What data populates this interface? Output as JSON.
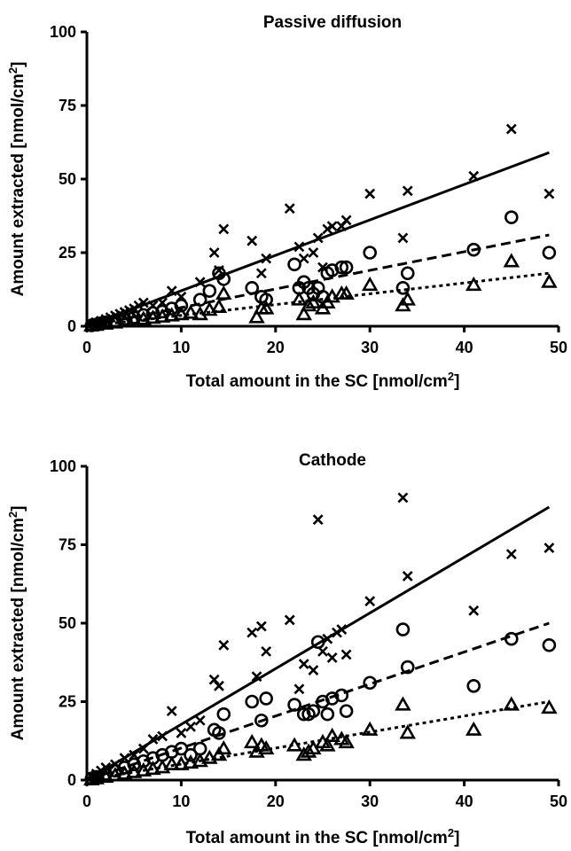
{
  "chart_data": [
    {
      "type": "scatter",
      "title": "Passive diffusion",
      "xlabel": "Total amount in the SC [nmol/cm²]",
      "ylabel": "Amount extracted [nmol/cm²]",
      "xlim": [
        0,
        50
      ],
      "ylim": [
        0,
        100
      ],
      "xticks": [
        "0",
        "10",
        "20",
        "30",
        "40",
        "50"
      ],
      "yticks": [
        "0",
        "25",
        "50",
        "75",
        "100"
      ],
      "series": [
        {
          "marker": "x",
          "fit_style": "solid",
          "fit": [
            [
              0,
              0
            ],
            [
              49,
              59
            ]
          ],
          "points": [
            [
              0.5,
              0.6
            ],
            [
              1,
              1.2
            ],
            [
              1.5,
              1.8
            ],
            [
              2,
              2.4
            ],
            [
              2.5,
              3
            ],
            [
              3,
              3.6
            ],
            [
              3.5,
              4.2
            ],
            [
              4,
              4.8
            ],
            [
              4.5,
              5.4
            ],
            [
              5,
              6
            ],
            [
              5.5,
              7
            ],
            [
              6,
              8
            ],
            [
              7,
              7
            ],
            [
              8,
              8
            ],
            [
              9,
              12
            ],
            [
              10,
              10
            ],
            [
              12,
              15
            ],
            [
              13.5,
              25
            ],
            [
              14,
              19
            ],
            [
              14.5,
              33
            ],
            [
              17.5,
              29
            ],
            [
              18.5,
              18
            ],
            [
              19,
              23
            ],
            [
              21.5,
              40
            ],
            [
              22.5,
              27
            ],
            [
              23,
              23
            ],
            [
              24,
              25
            ],
            [
              24.5,
              30
            ],
            [
              25,
              20
            ],
            [
              25.5,
              33
            ],
            [
              26,
              34
            ],
            [
              27,
              34
            ],
            [
              27.5,
              36
            ],
            [
              30,
              45
            ],
            [
              33.5,
              30
            ],
            [
              34,
              46
            ],
            [
              41,
              51
            ],
            [
              45,
              67
            ],
            [
              49,
              45
            ]
          ]
        },
        {
          "marker": "o",
          "fit_style": "dashed",
          "fit": [
            [
              0,
              0
            ],
            [
              49,
              31
            ]
          ],
          "points": [
            [
              0.5,
              0.3
            ],
            [
              1,
              0.6
            ],
            [
              1.5,
              1
            ],
            [
              2,
              1.3
            ],
            [
              3,
              1.8
            ],
            [
              4,
              2.5
            ],
            [
              5,
              3
            ],
            [
              6,
              3.8
            ],
            [
              7,
              4.5
            ],
            [
              8,
              5
            ],
            [
              9,
              6
            ],
            [
              10,
              7
            ],
            [
              12,
              9
            ],
            [
              13,
              12
            ],
            [
              14,
              18
            ],
            [
              14.5,
              16
            ],
            [
              17.5,
              13
            ],
            [
              18.5,
              10
            ],
            [
              19,
              9
            ],
            [
              22,
              21
            ],
            [
              22.5,
              13
            ],
            [
              23,
              15
            ],
            [
              23.5,
              13
            ],
            [
              24,
              11
            ],
            [
              24.5,
              13
            ],
            [
              25,
              10
            ],
            [
              25.5,
              18
            ],
            [
              26,
              19
            ],
            [
              27,
              20
            ],
            [
              27.5,
              20
            ],
            [
              30,
              25
            ],
            [
              33.5,
              13
            ],
            [
              34,
              18
            ],
            [
              41,
              26
            ],
            [
              45,
              37
            ],
            [
              49,
              25
            ]
          ]
        },
        {
          "marker": "triangle",
          "fit_style": "dotted",
          "fit": [
            [
              0,
              0
            ],
            [
              49,
              18
            ]
          ],
          "points": [
            [
              0.5,
              0.2
            ],
            [
              1,
              0.4
            ],
            [
              2,
              0.8
            ],
            [
              3,
              1.2
            ],
            [
              4,
              1.6
            ],
            [
              5,
              2
            ],
            [
              6,
              2.4
            ],
            [
              7,
              2.8
            ],
            [
              8,
              3.2
            ],
            [
              9,
              3.6
            ],
            [
              10,
              4
            ],
            [
              11,
              4.5
            ],
            [
              12,
              4
            ],
            [
              13,
              5.5
            ],
            [
              14,
              6.5
            ],
            [
              14.5,
              11
            ],
            [
              18,
              3
            ],
            [
              18.5,
              6
            ],
            [
              19,
              6
            ],
            [
              22.5,
              9
            ],
            [
              23,
              4
            ],
            [
              23.5,
              7
            ],
            [
              24,
              8
            ],
            [
              25,
              6
            ],
            [
              25.5,
              8
            ],
            [
              26,
              10
            ],
            [
              27,
              11
            ],
            [
              27.5,
              11
            ],
            [
              30,
              14
            ],
            [
              33.5,
              7
            ],
            [
              34,
              9
            ],
            [
              41,
              14
            ],
            [
              45,
              22
            ],
            [
              49,
              15
            ]
          ]
        }
      ]
    },
    {
      "type": "scatter",
      "title": "Cathode",
      "xlabel": "Total amount in the SC [nmol/cm²]",
      "ylabel": "Amount extracted [nmol/cm²]",
      "xlim": [
        0,
        50
      ],
      "ylim": [
        0,
        100
      ],
      "xticks": [
        "0",
        "10",
        "20",
        "30",
        "40",
        "50"
      ],
      "yticks": [
        "0",
        "25",
        "50",
        "75",
        "100"
      ],
      "series": [
        {
          "marker": "x",
          "fit_style": "solid",
          "fit": [
            [
              0,
              0
            ],
            [
              49,
              87
            ]
          ],
          "points": [
            [
              0.5,
              1
            ],
            [
              1,
              2
            ],
            [
              1.5,
              3
            ],
            [
              2,
              4
            ],
            [
              3,
              5
            ],
            [
              4,
              7
            ],
            [
              5,
              8
            ],
            [
              6,
              10
            ],
            [
              7,
              13
            ],
            [
              8,
              14
            ],
            [
              9,
              22
            ],
            [
              10,
              15
            ],
            [
              11,
              17
            ],
            [
              12,
              19
            ],
            [
              13.5,
              32
            ],
            [
              14,
              30
            ],
            [
              14.5,
              43
            ],
            [
              17.5,
              47
            ],
            [
              18,
              33
            ],
            [
              18.5,
              49
            ],
            [
              19,
              41
            ],
            [
              21.5,
              51
            ],
            [
              22.5,
              29
            ],
            [
              23,
              37
            ],
            [
              24,
              35
            ],
            [
              24.5,
              83
            ],
            [
              25,
              41
            ],
            [
              25.5,
              45
            ],
            [
              26,
              39
            ],
            [
              26.5,
              47
            ],
            [
              27,
              48
            ],
            [
              27.5,
              40
            ],
            [
              30,
              57
            ],
            [
              33.5,
              90
            ],
            [
              34,
              65
            ],
            [
              41,
              54
            ],
            [
              45,
              72
            ],
            [
              49,
              74
            ]
          ]
        },
        {
          "marker": "o",
          "fit_style": "dashed",
          "fit": [
            [
              0,
              0
            ],
            [
              49,
              50
            ]
          ],
          "points": [
            [
              0.5,
              0.5
            ],
            [
              1,
              1
            ],
            [
              2,
              2
            ],
            [
              3,
              3
            ],
            [
              4,
              4
            ],
            [
              5,
              5
            ],
            [
              6,
              6
            ],
            [
              7,
              7
            ],
            [
              8,
              8
            ],
            [
              9,
              9
            ],
            [
              10,
              10
            ],
            [
              11,
              8
            ],
            [
              12,
              10
            ],
            [
              13.5,
              16
            ],
            [
              14,
              15
            ],
            [
              14.5,
              21
            ],
            [
              17.5,
              25
            ],
            [
              18.5,
              19
            ],
            [
              19,
              26
            ],
            [
              22,
              24
            ],
            [
              23,
              21
            ],
            [
              23.5,
              21
            ],
            [
              24,
              22
            ],
            [
              24.5,
              44
            ],
            [
              25,
              25
            ],
            [
              25.5,
              21
            ],
            [
              26,
              26
            ],
            [
              27,
              27
            ],
            [
              27.5,
              22
            ],
            [
              30,
              31
            ],
            [
              33.5,
              48
            ],
            [
              34,
              36
            ],
            [
              41,
              30
            ],
            [
              45,
              45
            ],
            [
              49,
              43
            ]
          ]
        },
        {
          "marker": "triangle",
          "fit_style": "dotted",
          "fit": [
            [
              0,
              0
            ],
            [
              49,
              25
            ]
          ],
          "points": [
            [
              0.5,
              0.2
            ],
            [
              1,
              0.5
            ],
            [
              2,
              1
            ],
            [
              3,
              1.5
            ],
            [
              4,
              2
            ],
            [
              5,
              2.5
            ],
            [
              6,
              3
            ],
            [
              7,
              3.5
            ],
            [
              8,
              4
            ],
            [
              9,
              5
            ],
            [
              10,
              5
            ],
            [
              11,
              5.5
            ],
            [
              12,
              6
            ],
            [
              13,
              7
            ],
            [
              14,
              8
            ],
            [
              14.5,
              10
            ],
            [
              17.5,
              12
            ],
            [
              18,
              9
            ],
            [
              18.5,
              11
            ],
            [
              19,
              10
            ],
            [
              22,
              11
            ],
            [
              23,
              8
            ],
            [
              23.5,
              9
            ],
            [
              24,
              10
            ],
            [
              25,
              12
            ],
            [
              25.5,
              11
            ],
            [
              26,
              14
            ],
            [
              27,
              13
            ],
            [
              27.5,
              12
            ],
            [
              30,
              16
            ],
            [
              33.5,
              24
            ],
            [
              34,
              15
            ],
            [
              41,
              16
            ],
            [
              45,
              24
            ],
            [
              49,
              23
            ]
          ]
        }
      ]
    }
  ]
}
